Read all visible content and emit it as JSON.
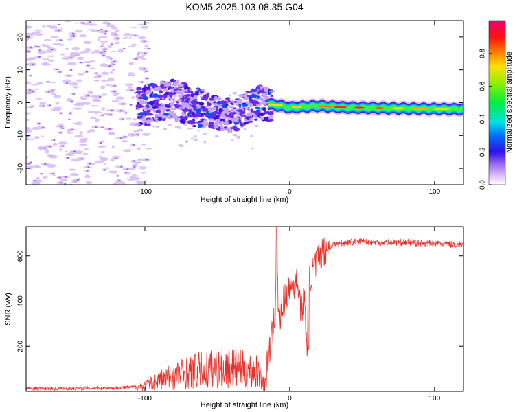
{
  "title": "KOM5.2025.103.08.35.G04",
  "colors": {
    "snr_line": "#e8302a",
    "spectrogram_low": "#d6b8f5",
    "spectrogram_mid": "#5a1fe0",
    "frame": "#000000"
  },
  "chart_data": [
    {
      "type": "heatmap",
      "xlabel": "Height of straight line (km)",
      "ylabel": "Frequency (Hz)",
      "xlim": [
        -182,
        120
      ],
      "ylim": [
        -25,
        25
      ],
      "xticks": [
        -100,
        0,
        100
      ],
      "yticks": [
        -20,
        -10,
        0,
        10,
        20
      ],
      "grid": false,
      "ridge": {
        "description_values": [
          {
            "x": -100,
            "y": -1
          },
          {
            "x": -80,
            "y": 1
          },
          {
            "x": -60,
            "y": -2
          },
          {
            "x": -40,
            "y": -4
          },
          {
            "x": -20,
            "y": 0
          },
          {
            "x": 0,
            "y": -1.5
          },
          {
            "x": 20,
            "y": -1
          },
          {
            "x": 40,
            "y": -1.5
          },
          {
            "x": 80,
            "y": -1.8
          },
          {
            "x": 120,
            "y": -2
          }
        ]
      },
      "colorbar": {
        "label": "Normalized spectral amplitude",
        "ticks": [
          "0.0",
          "0.2",
          "0.4",
          "0.6",
          "0.8"
        ],
        "range": [
          0,
          1
        ]
      }
    },
    {
      "type": "line",
      "xlabel": "Height of straight line (km)",
      "ylabel": "SNR (v/v)",
      "xlim": [
        -182,
        120
      ],
      "ylim": [
        0,
        730
      ],
      "xticks": [
        -100,
        0,
        100
      ],
      "yticks": [
        200,
        400,
        600
      ],
      "grid": false,
      "series": [
        {
          "x": [
            -182,
            -160,
            -140,
            -120,
            -105,
            -100,
            -90,
            -80,
            -70,
            -60,
            -50,
            -40,
            -30,
            -20,
            -17,
            -15,
            -12,
            -10,
            -9,
            -8,
            -7,
            -5,
            -2,
            0,
            3,
            6,
            8,
            10,
            12,
            13,
            15,
            18,
            20,
            25,
            30,
            40,
            50,
            60,
            80,
            100,
            120
          ],
          "values": [
            12,
            12,
            14,
            16,
            20,
            25,
            50,
            70,
            85,
            95,
            100,
            105,
            95,
            80,
            20,
            150,
            250,
            350,
            720,
            350,
            300,
            380,
            430,
            450,
            470,
            480,
            350,
            420,
            180,
            480,
            520,
            560,
            600,
            630,
            650,
            660,
            665,
            660,
            660,
            655,
            650
          ]
        }
      ]
    }
  ]
}
